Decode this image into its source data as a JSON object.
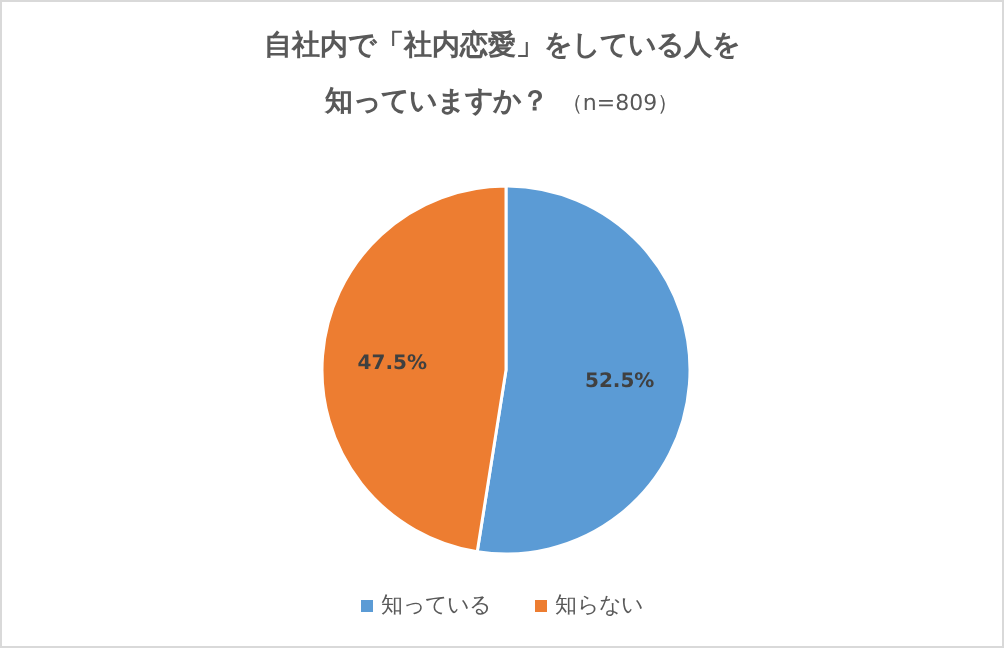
{
  "chart_data": {
    "type": "pie",
    "title": "自社内で「社内恋愛」をしている人を知っていますか？",
    "subtitle": "（n=809）",
    "categories": [
      "知っている",
      "知らない"
    ],
    "values": [
      52.5,
      47.5
    ],
    "colors": [
      "#5b9bd5",
      "#ed7d31"
    ],
    "value_labels": [
      "52.5%",
      "47.5%"
    ],
    "legend": "bottom"
  }
}
